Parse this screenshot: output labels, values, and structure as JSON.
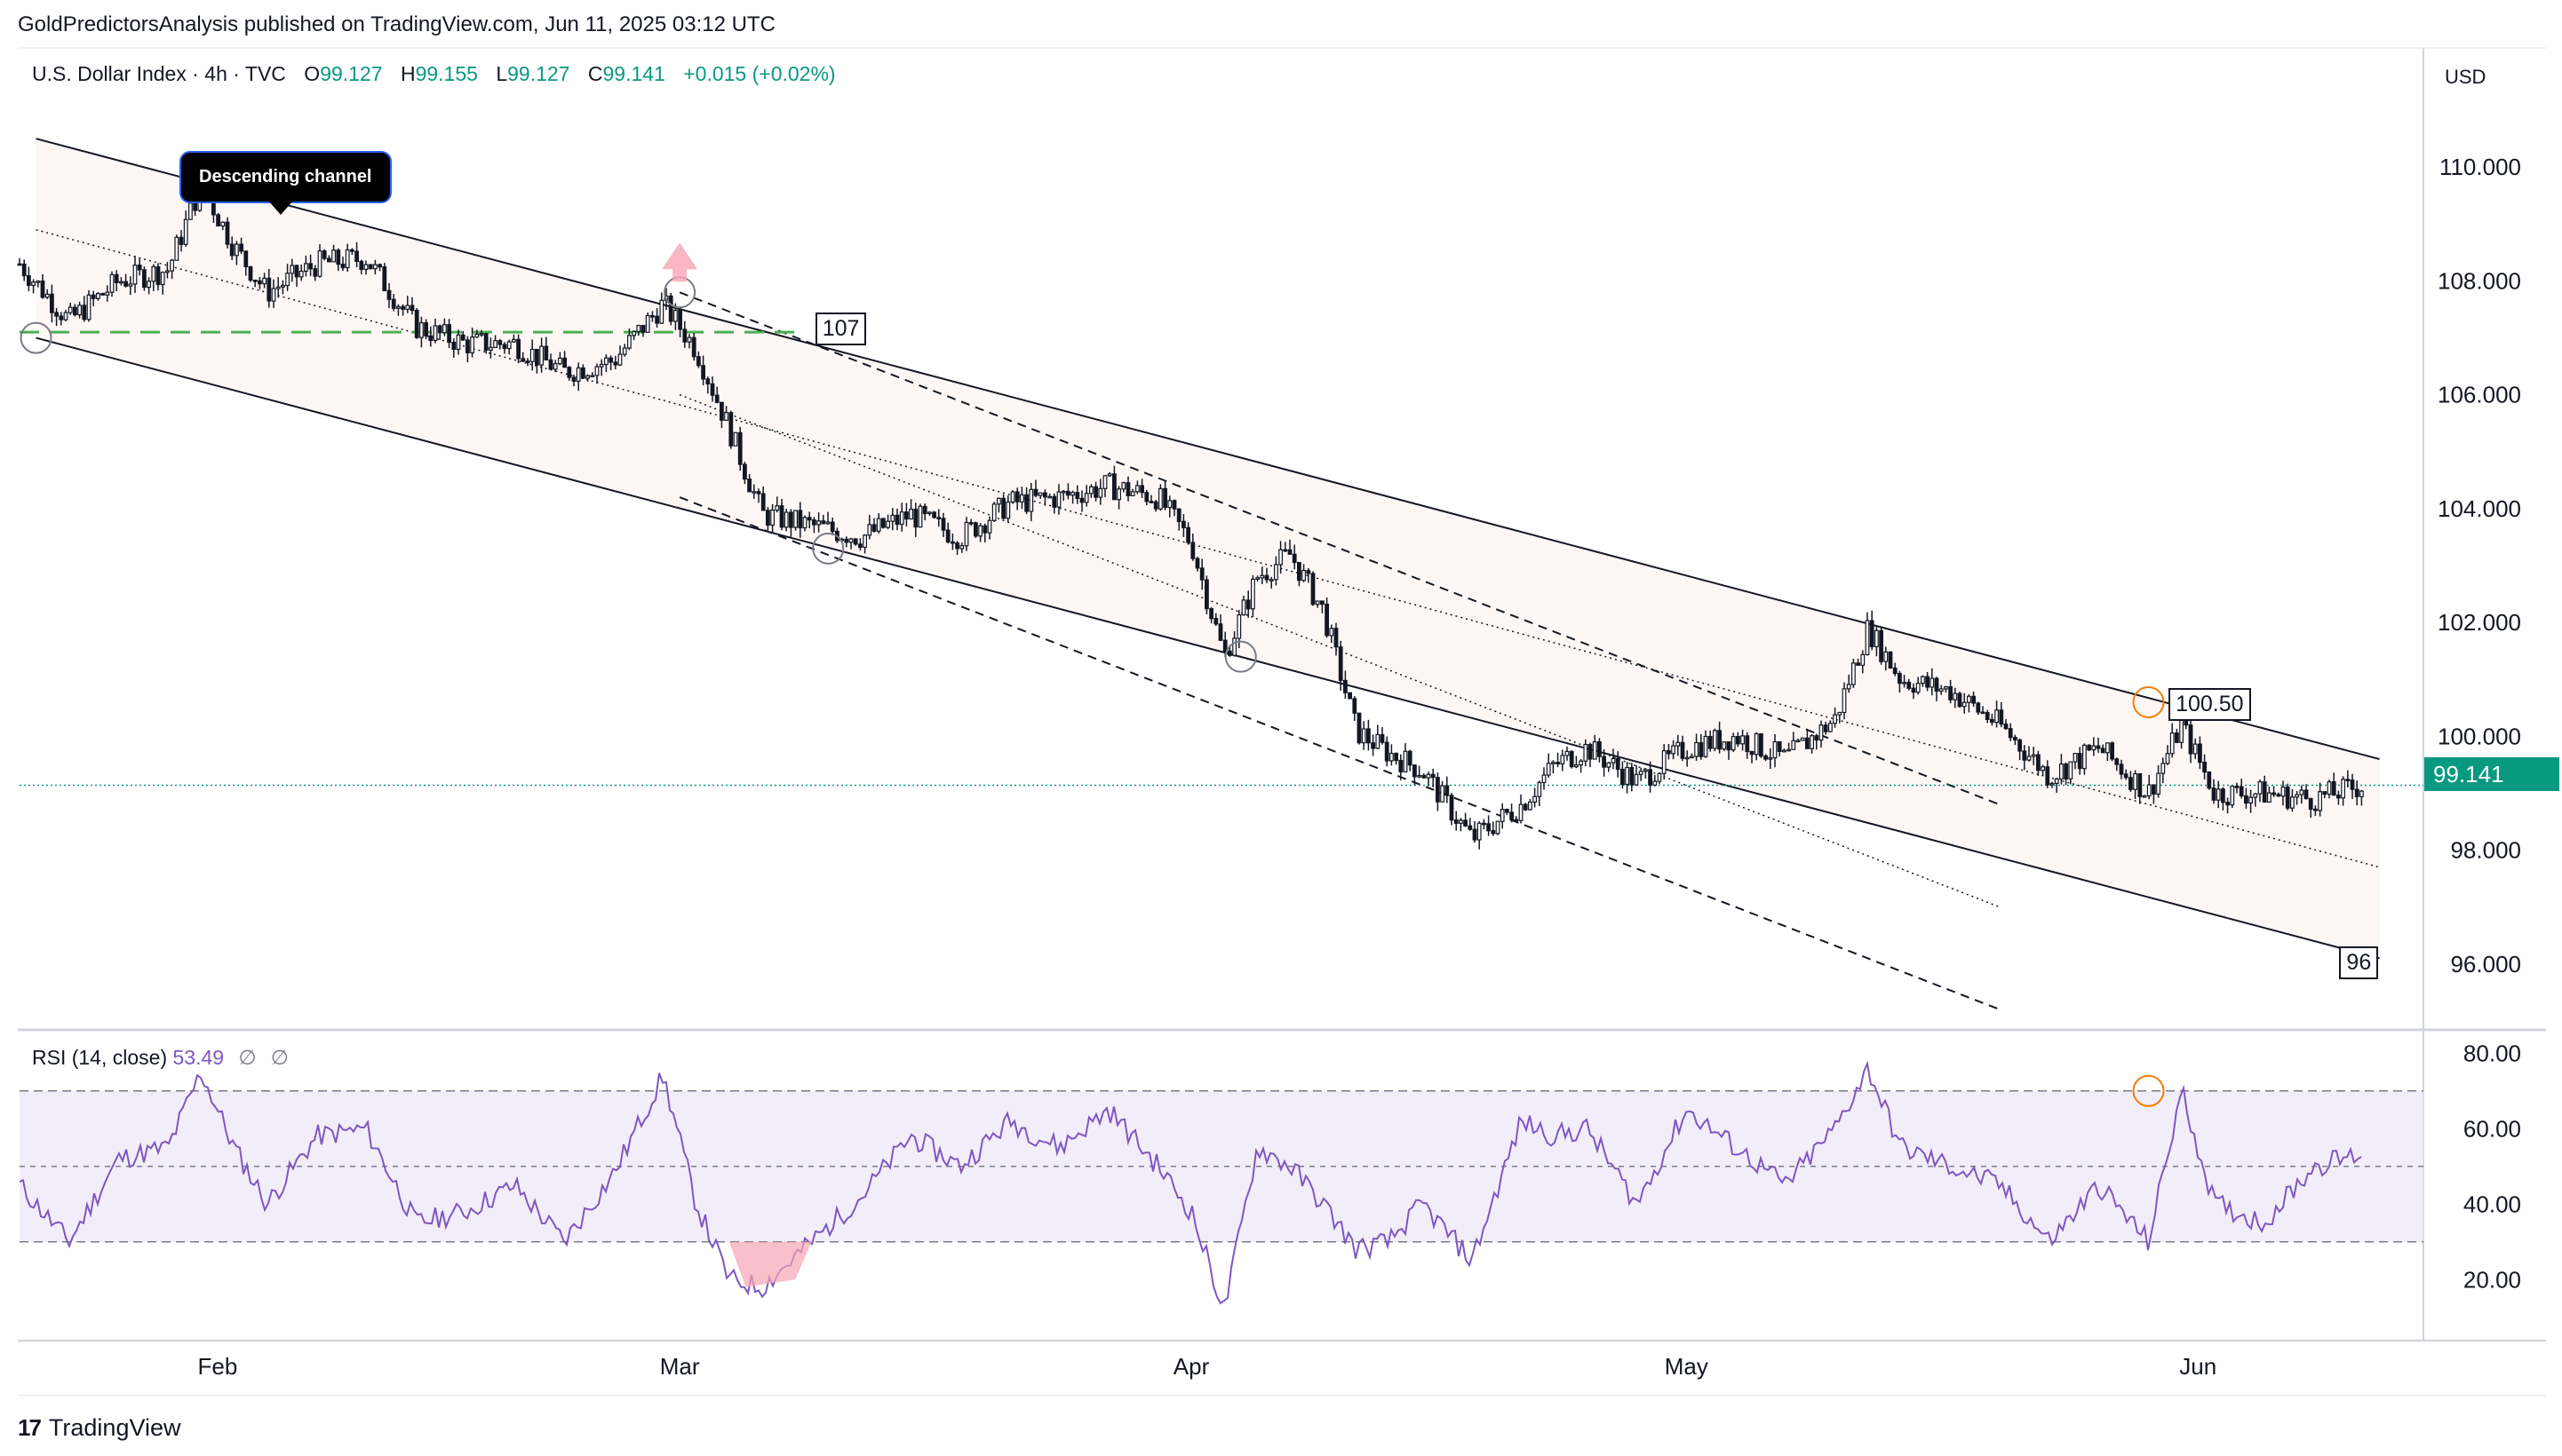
{
  "publisher": "GoldPredictorsAnalysis published on TradingView.com, Jun 11, 2025 03:12 UTC",
  "legend": {
    "symbol": "U.S. Dollar Index · 4h · TVC",
    "open_label": "O",
    "open": "99.127",
    "high_label": "H",
    "high": "99.155",
    "low_label": "L",
    "low": "99.127",
    "close_label": "C",
    "close": "99.141",
    "change": "+0.015 (+0.02%)"
  },
  "currency": "USD",
  "current_price_tag": "99.141",
  "annotations": {
    "callout": "Descending channel",
    "label_107": "107",
    "label_100_50": "100.50",
    "label_96": "96"
  },
  "rsi_legend": {
    "title": "RSI (14, close)",
    "value": "53.49",
    "empty1": "∅",
    "empty2": "∅"
  },
  "footer": {
    "logo_text": "TradingView",
    "logo_mark": "17"
  },
  "colors": {
    "up": "#089981",
    "down": "#f23645",
    "candle": "#131722",
    "rsi_line": "#7e57c2",
    "rsi_band": "#ede7f6",
    "support": "#4caf50",
    "channel_fill": "#fdf1ef",
    "highlight_circle": "#f57c00"
  },
  "chart_data": [
    {
      "type": "candlestick",
      "title": "U.S. Dollar Index · 4h · TVC",
      "ylabel": "USD",
      "ylim": [
        95,
        112
      ],
      "y_ticks": [
        96,
        98,
        100,
        102,
        104,
        106,
        108,
        110
      ],
      "y_tick_labels": [
        "96.000",
        "98.000",
        "100.000",
        "102.000",
        "104.000",
        "106.000",
        "108.000",
        "110.000"
      ],
      "x_labels": [
        "Feb",
        "Mar",
        "Apr",
        "May",
        "Jun"
      ],
      "x_range": [
        "2025-01-20",
        "2025-06-11"
      ],
      "x_label_dates": [
        "2025-02-01",
        "2025-03-01",
        "2025-04-01",
        "2025-05-01",
        "2025-06-01"
      ],
      "grid": false,
      "series": [
        {
          "name": "U.S. Dollar Index",
          "x": [
            "2025-01-20",
            "2025-01-23",
            "2025-01-26",
            "2025-01-29",
            "2025-01-31",
            "2025-02-02",
            "2025-02-04",
            "2025-02-07",
            "2025-02-10",
            "2025-02-13",
            "2025-02-16",
            "2025-02-19",
            "2025-02-22",
            "2025-02-25",
            "2025-02-28",
            "2025-03-02",
            "2025-03-04",
            "2025-03-06",
            "2025-03-09",
            "2025-03-12",
            "2025-03-15",
            "2025-03-18",
            "2025-03-21",
            "2025-03-24",
            "2025-03-27",
            "2025-03-30",
            "2025-04-01",
            "2025-04-03",
            "2025-04-05",
            "2025-04-07",
            "2025-04-09",
            "2025-04-11",
            "2025-04-13",
            "2025-04-15",
            "2025-04-18",
            "2025-04-21",
            "2025-04-23",
            "2025-04-25",
            "2025-04-28",
            "2025-05-01",
            "2025-05-04",
            "2025-05-07",
            "2025-05-10",
            "2025-05-12",
            "2025-05-14",
            "2025-05-17",
            "2025-05-20",
            "2025-05-23",
            "2025-05-26",
            "2025-05-29",
            "2025-05-31",
            "2025-06-02",
            "2025-06-05",
            "2025-06-08",
            "2025-06-11"
          ],
          "values": [
            108.3,
            107.3,
            108.0,
            108.2,
            109.7,
            108.6,
            107.8,
            108.3,
            108.4,
            107.2,
            106.9,
            106.9,
            106.4,
            106.6,
            107.6,
            106.8,
            105.4,
            103.9,
            103.7,
            103.5,
            103.9,
            103.5,
            104.1,
            104.2,
            104.4,
            104.2,
            103.4,
            101.4,
            102.8,
            103.2,
            102.2,
            100.1,
            99.7,
            99.4,
            98.2,
            98.8,
            99.5,
            99.8,
            99.2,
            99.8,
            100.0,
            99.6,
            100.3,
            101.9,
            101.0,
            100.8,
            100.2,
            99.3,
            99.8,
            99.0,
            100.2,
            99.0,
            99.0,
            98.9,
            99.14
          ]
        }
      ],
      "horizontal_lines": [
        {
          "name": "support-107",
          "value": 107.1,
          "style": "dashed"
        },
        {
          "name": "last-price",
          "value": 99.141,
          "style": "dotted"
        }
      ],
      "channel": {
        "upper": [
          [
            "2025-01-21",
            110.5
          ],
          [
            "2025-06-12",
            99.6
          ]
        ],
        "lower": [
          [
            "2025-01-21",
            107.0
          ],
          [
            "2025-06-12",
            96.1
          ]
        ],
        "mid": [
          [
            "2025-01-21",
            108.9
          ],
          [
            "2025-06-12",
            97.7
          ]
        ]
      },
      "markers": [
        {
          "name": "circle-jan",
          "x": "2025-01-21",
          "y": 107.0
        },
        {
          "name": "circle-mar-top",
          "x": "2025-03-01",
          "y": 107.8
        },
        {
          "name": "circle-mar-low",
          "x": "2025-03-10",
          "y": 103.3
        },
        {
          "name": "circle-apr",
          "x": "2025-04-04",
          "y": 101.4
        },
        {
          "name": "circle-may",
          "x": "2025-05-29",
          "y": 100.6
        }
      ]
    },
    {
      "type": "line",
      "title": "RSI (14, close)",
      "ylim": [
        5,
        85
      ],
      "y_ticks": [
        20,
        40,
        60,
        80
      ],
      "y_tick_labels": [
        "20.00",
        "40.00",
        "60.00",
        "80.00"
      ],
      "levels": [
        30,
        50,
        70
      ],
      "series": [
        {
          "name": "RSI",
          "x": [
            "2025-01-20",
            "2025-01-23",
            "2025-01-26",
            "2025-01-29",
            "2025-01-31",
            "2025-02-02",
            "2025-02-04",
            "2025-02-07",
            "2025-02-10",
            "2025-02-13",
            "2025-02-16",
            "2025-02-19",
            "2025-02-22",
            "2025-02-25",
            "2025-02-28",
            "2025-03-02",
            "2025-03-04",
            "2025-03-06",
            "2025-03-09",
            "2025-03-12",
            "2025-03-15",
            "2025-03-18",
            "2025-03-21",
            "2025-03-24",
            "2025-03-27",
            "2025-03-30",
            "2025-04-01",
            "2025-04-03",
            "2025-04-05",
            "2025-04-07",
            "2025-04-09",
            "2025-04-11",
            "2025-04-13",
            "2025-04-15",
            "2025-04-18",
            "2025-04-21",
            "2025-04-23",
            "2025-04-25",
            "2025-04-28",
            "2025-05-01",
            "2025-05-04",
            "2025-05-07",
            "2025-05-10",
            "2025-05-12",
            "2025-05-14",
            "2025-05-17",
            "2025-05-20",
            "2025-05-23",
            "2025-05-26",
            "2025-05-29",
            "2025-05-31",
            "2025-06-02",
            "2025-06-05",
            "2025-06-08",
            "2025-06-11"
          ],
          "values": [
            45,
            30,
            52,
            55,
            75,
            55,
            40,
            58,
            60,
            35,
            38,
            45,
            30,
            48,
            74,
            40,
            20,
            18,
            30,
            42,
            58,
            50,
            62,
            55,
            65,
            50,
            38,
            12,
            55,
            50,
            40,
            28,
            30,
            40,
            25,
            62,
            58,
            60,
            40,
            65,
            55,
            45,
            60,
            76,
            55,
            50,
            45,
            30,
            45,
            30,
            70,
            40,
            35,
            50,
            53.49
          ]
        }
      ]
    }
  ]
}
